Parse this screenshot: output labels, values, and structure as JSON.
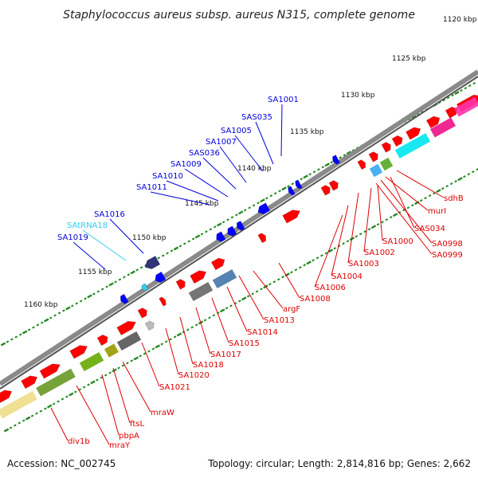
{
  "title": "Staphylococcus aureus subsp. aureus N315, complete genome",
  "footer": {
    "accession": "Accession: NC_002745",
    "summary": "Topology: circular; Length: 2,814,816 bp; Genes: 2,662"
  },
  "colors": {
    "backbone": "#777777",
    "outer_label": "#0000dd",
    "rna_label": "#33ccee",
    "inner_label": "#dd0000",
    "tick": "#228822",
    "red": "#ff0000",
    "blue": "#0000ff"
  },
  "kbp_labels": [
    "1120 kbp",
    "1125 kbp",
    "1130 kbp",
    "1135 kbp",
    "1140 kbp",
    "1145 kbp",
    "1150 kbp",
    "1155 kbp",
    "1160 kbp"
  ],
  "outer_labels": [
    {
      "text": "SA1001",
      "kind": "gene"
    },
    {
      "text": "SAS035",
      "kind": "gene"
    },
    {
      "text": "SA1005",
      "kind": "gene"
    },
    {
      "text": "SA1007",
      "kind": "gene"
    },
    {
      "text": "SAS036",
      "kind": "gene"
    },
    {
      "text": "SA1009",
      "kind": "gene"
    },
    {
      "text": "SA1010",
      "kind": "gene"
    },
    {
      "text": "SA1011",
      "kind": "gene"
    },
    {
      "text": "SA1016",
      "kind": "gene"
    },
    {
      "text": "SAtRNA18",
      "kind": "rna"
    },
    {
      "text": "SA1019",
      "kind": "gene"
    }
  ],
  "inner_labels": [
    "sdhB",
    "murI",
    "SA0998",
    "SA0999",
    "SAS034",
    "SA1000",
    "SA1002",
    "SA1003",
    "SA1004",
    "SA1006",
    "SA1008",
    "argF",
    "SA1013",
    "SA1014",
    "SA1015",
    "SA1017",
    "SA1018",
    "SA1020",
    "SA1021",
    "mraW",
    "ftsL",
    "pbpA",
    "mraY",
    "div1b"
  ]
}
